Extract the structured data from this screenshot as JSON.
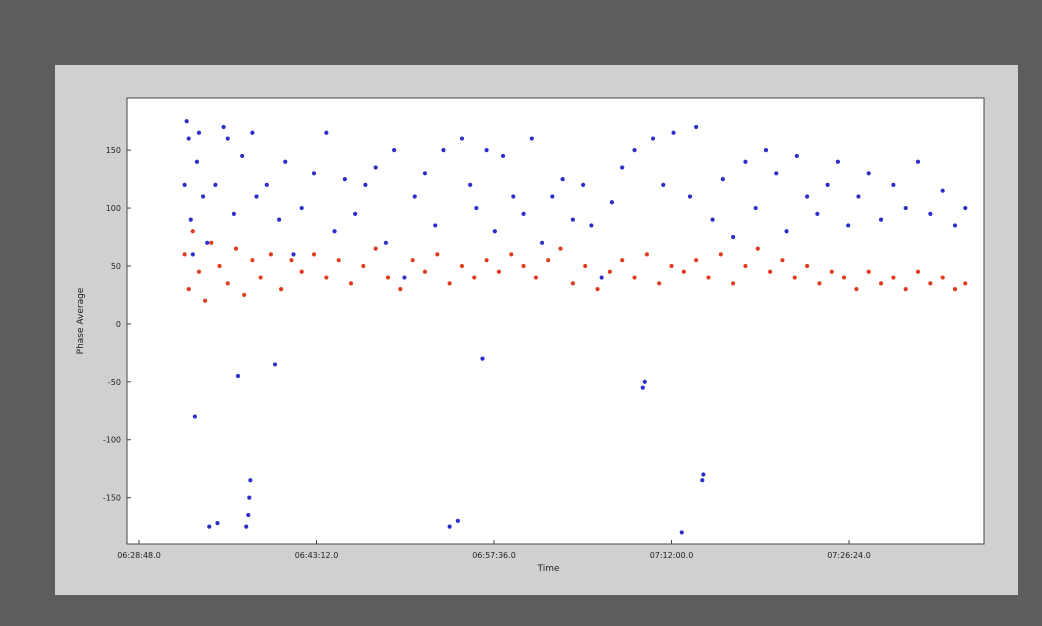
{
  "chart_data": {
    "type": "scatter",
    "title": "",
    "xlabel": "Time",
    "ylabel": "Phase Average",
    "x_ticks": [
      "06:28:48.0",
      "06:43:12.0",
      "06:57:36.0",
      "07:12:00.0",
      "07:26:24.0"
    ],
    "y_ticks": [
      150,
      100,
      50,
      0,
      -50,
      -100,
      -150
    ],
    "ylim": [
      -190,
      195
    ],
    "grid": false,
    "legend": "none",
    "series": [
      {
        "color": "#2b2fc9",
        "points": [
          [
            "06:32:30",
            120
          ],
          [
            "06:32:40",
            175
          ],
          [
            "06:32:50",
            160
          ],
          [
            "06:33:00",
            90
          ],
          [
            "06:33:10",
            60
          ],
          [
            "06:33:20",
            -80
          ],
          [
            "06:33:30",
            140
          ],
          [
            "06:33:40",
            165
          ],
          [
            "06:34:00",
            110
          ],
          [
            "06:34:20",
            70
          ],
          [
            "06:34:30",
            -175
          ],
          [
            "06:35:00",
            120
          ],
          [
            "06:35:10",
            -172
          ],
          [
            "06:35:40",
            170
          ],
          [
            "06:36:00",
            160
          ],
          [
            "06:36:30",
            95
          ],
          [
            "06:36:50",
            -45
          ],
          [
            "06:37:10",
            145
          ],
          [
            "06:37:30",
            -175
          ],
          [
            "06:37:40",
            -165
          ],
          [
            "06:37:45",
            -150
          ],
          [
            "06:37:50",
            -135
          ],
          [
            "06:38:00",
            165
          ],
          [
            "06:38:20",
            110
          ],
          [
            "06:39:10",
            120
          ],
          [
            "06:39:50",
            -35
          ],
          [
            "06:40:10",
            90
          ],
          [
            "06:40:40",
            140
          ],
          [
            "06:41:20",
            60
          ],
          [
            "06:42:00",
            100
          ],
          [
            "06:43:00",
            130
          ],
          [
            "06:44:00",
            165
          ],
          [
            "06:44:40",
            80
          ],
          [
            "06:45:30",
            125
          ],
          [
            "06:46:20",
            95
          ],
          [
            "06:47:10",
            120
          ],
          [
            "06:48:00",
            135
          ],
          [
            "06:48:50",
            70
          ],
          [
            "06:49:30",
            150
          ],
          [
            "06:50:20",
            40
          ],
          [
            "06:51:10",
            110
          ],
          [
            "06:52:00",
            130
          ],
          [
            "06:52:50",
            85
          ],
          [
            "06:53:30",
            150
          ],
          [
            "06:54:00",
            -175
          ],
          [
            "06:54:40",
            -170
          ],
          [
            "06:55:00",
            160
          ],
          [
            "06:55:40",
            120
          ],
          [
            "06:56:10",
            100
          ],
          [
            "06:56:40",
            -30
          ],
          [
            "06:57:00",
            150
          ],
          [
            "06:57:40",
            80
          ],
          [
            "06:58:20",
            145
          ],
          [
            "06:59:10",
            110
          ],
          [
            "07:00:00",
            95
          ],
          [
            "07:00:40",
            160
          ],
          [
            "07:01:30",
            70
          ],
          [
            "07:02:20",
            110
          ],
          [
            "07:03:10",
            125
          ],
          [
            "07:04:00",
            90
          ],
          [
            "07:04:50",
            120
          ],
          [
            "07:05:30",
            85
          ],
          [
            "07:06:20",
            40
          ],
          [
            "07:07:10",
            105
          ],
          [
            "07:08:00",
            135
          ],
          [
            "07:09:00",
            150
          ],
          [
            "07:09:40",
            -55
          ],
          [
            "07:09:50",
            -50
          ],
          [
            "07:10:30",
            160
          ],
          [
            "07:11:20",
            120
          ],
          [
            "07:12:10",
            165
          ],
          [
            "07:12:50",
            -180
          ],
          [
            "07:13:30",
            110
          ],
          [
            "07:14:00",
            170
          ],
          [
            "07:14:30",
            -135
          ],
          [
            "07:14:35",
            -130
          ],
          [
            "07:15:20",
            90
          ],
          [
            "07:16:10",
            125
          ],
          [
            "07:17:00",
            75
          ],
          [
            "07:18:00",
            140
          ],
          [
            "07:18:50",
            100
          ],
          [
            "07:19:40",
            150
          ],
          [
            "07:20:30",
            130
          ],
          [
            "07:21:20",
            80
          ],
          [
            "07:22:10",
            145
          ],
          [
            "07:23:00",
            110
          ],
          [
            "07:23:50",
            95
          ],
          [
            "07:24:40",
            120
          ],
          [
            "07:25:30",
            140
          ],
          [
            "07:26:20",
            85
          ],
          [
            "07:27:10",
            110
          ],
          [
            "07:28:00",
            130
          ],
          [
            "07:29:00",
            90
          ],
          [
            "07:30:00",
            120
          ],
          [
            "07:31:00",
            100
          ],
          [
            "07:32:00",
            140
          ],
          [
            "07:33:00",
            95
          ],
          [
            "07:34:00",
            115
          ],
          [
            "07:35:00",
            85
          ],
          [
            "07:35:50",
            100
          ]
        ]
      },
      {
        "color": "#e23a1c",
        "points": [
          [
            "06:32:30",
            60
          ],
          [
            "06:32:50",
            30
          ],
          [
            "06:33:10",
            80
          ],
          [
            "06:33:40",
            45
          ],
          [
            "06:34:10",
            20
          ],
          [
            "06:34:40",
            70
          ],
          [
            "06:35:20",
            50
          ],
          [
            "06:36:00",
            35
          ],
          [
            "06:36:40",
            65
          ],
          [
            "06:37:20",
            25
          ],
          [
            "06:38:00",
            55
          ],
          [
            "06:38:40",
            40
          ],
          [
            "06:39:30",
            60
          ],
          [
            "06:40:20",
            30
          ],
          [
            "06:41:10",
            55
          ],
          [
            "06:42:00",
            45
          ],
          [
            "06:43:00",
            60
          ],
          [
            "06:44:00",
            40
          ],
          [
            "06:45:00",
            55
          ],
          [
            "06:46:00",
            35
          ],
          [
            "06:47:00",
            50
          ],
          [
            "06:48:00",
            65
          ],
          [
            "06:49:00",
            40
          ],
          [
            "06:50:00",
            30
          ],
          [
            "06:51:00",
            55
          ],
          [
            "06:52:00",
            45
          ],
          [
            "06:53:00",
            60
          ],
          [
            "06:54:00",
            35
          ],
          [
            "06:55:00",
            50
          ],
          [
            "06:56:00",
            40
          ],
          [
            "06:57:00",
            55
          ],
          [
            "06:58:00",
            45
          ],
          [
            "06:59:00",
            60
          ],
          [
            "07:00:00",
            50
          ],
          [
            "07:01:00",
            40
          ],
          [
            "07:02:00",
            55
          ],
          [
            "07:03:00",
            65
          ],
          [
            "07:04:00",
            35
          ],
          [
            "07:05:00",
            50
          ],
          [
            "07:06:00",
            30
          ],
          [
            "07:07:00",
            45
          ],
          [
            "07:08:00",
            55
          ],
          [
            "07:09:00",
            40
          ],
          [
            "07:10:00",
            60
          ],
          [
            "07:11:00",
            35
          ],
          [
            "07:12:00",
            50
          ],
          [
            "07:13:00",
            45
          ],
          [
            "07:14:00",
            55
          ],
          [
            "07:15:00",
            40
          ],
          [
            "07:16:00",
            60
          ],
          [
            "07:17:00",
            35
          ],
          [
            "07:18:00",
            50
          ],
          [
            "07:19:00",
            65
          ],
          [
            "07:20:00",
            45
          ],
          [
            "07:21:00",
            55
          ],
          [
            "07:22:00",
            40
          ],
          [
            "07:23:00",
            50
          ],
          [
            "07:24:00",
            35
          ],
          [
            "07:25:00",
            45
          ],
          [
            "07:26:00",
            40
          ],
          [
            "07:27:00",
            30
          ],
          [
            "07:28:00",
            45
          ],
          [
            "07:29:00",
            35
          ],
          [
            "07:30:00",
            40
          ],
          [
            "07:31:00",
            30
          ],
          [
            "07:32:00",
            45
          ],
          [
            "07:33:00",
            35
          ],
          [
            "07:34:00",
            40
          ],
          [
            "07:35:00",
            30
          ],
          [
            "07:35:50",
            35
          ]
        ]
      }
    ]
  }
}
